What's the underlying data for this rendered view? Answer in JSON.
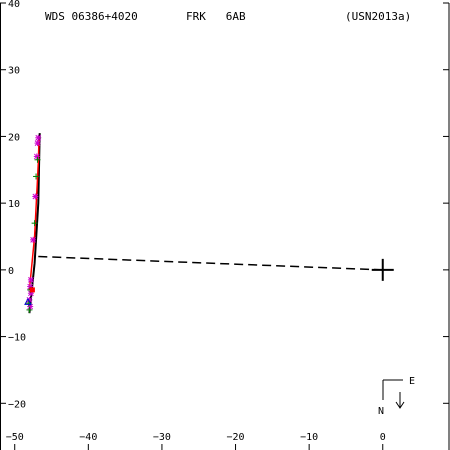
{
  "header": {
    "wds": "WDS 06386+4020",
    "discoverer": "FRK   6AB",
    "orbit_ref": "(USN2013a)"
  },
  "compass": {
    "north": "N",
    "east": "E"
  },
  "chart_data": {
    "type": "scatter",
    "title": "",
    "xlabel": "",
    "ylabel": "",
    "xlim": [
      -52,
      9
    ],
    "ylim": [
      -27,
      40
    ],
    "x_axis_reversed": false,
    "xticks": [
      -50,
      -40,
      -30,
      -20,
      -10,
      0
    ],
    "yticks": [
      -20,
      -10,
      0,
      10,
      20,
      30,
      40
    ],
    "xtick_labels": [
      "−50",
      "−40",
      "−30",
      "−20",
      "−10",
      "0"
    ],
    "ytick_labels": [
      "−20",
      "−10",
      "0",
      "10",
      "20",
      "30",
      "40"
    ],
    "primary": {
      "x": 0,
      "y": 0,
      "marker": "plus"
    },
    "orbit_track": {
      "color": "#000000",
      "points": [
        [
          -48.0,
          -6.5
        ],
        [
          -47.3,
          1.0
        ],
        [
          -46.8,
          10.0
        ],
        [
          -46.6,
          20.5
        ]
      ]
    },
    "red_track": {
      "color": "#ff0000",
      "points": [
        [
          -48.0,
          -3.0
        ],
        [
          -47.3,
          5.0
        ],
        [
          -46.8,
          16.0
        ],
        [
          -46.7,
          19.5
        ]
      ]
    },
    "node_line": {
      "style": "dashed",
      "color": "#000000",
      "points": [
        [
          -46.8,
          2.0
        ],
        [
          0.0,
          0.0
        ]
      ]
    },
    "series": [
      {
        "marker": "star",
        "color": "#cc00cc",
        "points": [
          [
            -48.0,
            -4.5
          ],
          [
            -47.9,
            -2.5
          ],
          [
            -47.8,
            -1.5
          ],
          [
            -47.5,
            4.5
          ],
          [
            -47.2,
            11.0
          ],
          [
            -47.0,
            17.0
          ],
          [
            -46.9,
            19.0
          ],
          [
            -46.8,
            19.8
          ],
          [
            -47.9,
            -5.5
          ],
          [
            -47.8,
            -3.5
          ]
        ]
      },
      {
        "marker": "plus",
        "color": "#008000",
        "points": [
          [
            -48.1,
            -5.0
          ],
          [
            -47.9,
            -3.0
          ],
          [
            -47.3,
            7.0
          ],
          [
            -47.1,
            14.0
          ],
          [
            -46.9,
            16.5
          ],
          [
            -48.0,
            -6.0
          ]
        ]
      },
      {
        "marker": "square",
        "color": "#ff0000",
        "points": [
          [
            -47.6,
            -3.0
          ]
        ]
      },
      {
        "marker": "triangle",
        "color": "#0000cc",
        "points": [
          [
            -48.2,
            -4.8
          ]
        ]
      }
    ]
  }
}
